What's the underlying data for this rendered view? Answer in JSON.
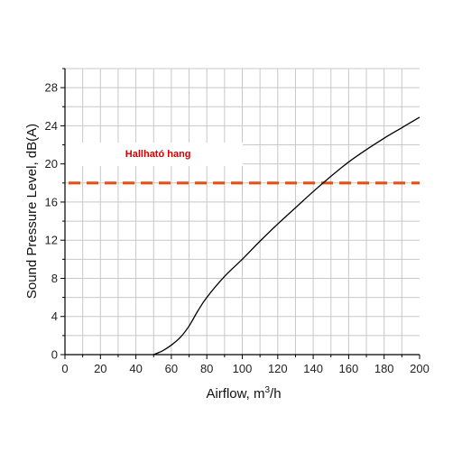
{
  "chart_data": {
    "type": "line",
    "xlabel": "Airflow, m",
    "xlabel_sup": "3",
    "xlabel_suffix": "/h",
    "ylabel": "Sound Pressure Level, dB(A)",
    "xlim": [
      0,
      200
    ],
    "ylim": [
      0,
      30
    ],
    "x_ticks": [
      0,
      20,
      40,
      60,
      80,
      100,
      120,
      140,
      160,
      180,
      200
    ],
    "y_ticks": [
      0,
      4,
      8,
      12,
      16,
      20,
      24,
      28
    ],
    "grid": true,
    "series": [
      {
        "color": "#000000",
        "x": [
          50,
          55,
          60,
          65,
          70,
          75,
          80,
          90,
          100,
          110,
          120,
          130,
          140,
          150,
          160,
          170,
          180,
          190,
          200
        ],
        "y": [
          0,
          0.4,
          1.0,
          1.8,
          3.0,
          4.6,
          6.0,
          8.2,
          10.0,
          11.9,
          13.7,
          15.4,
          17.1,
          18.7,
          20.2,
          21.5,
          22.7,
          23.8,
          24.9
        ]
      }
    ],
    "reference_line": {
      "y": 18,
      "color": "#e0511b",
      "style": "dashed"
    },
    "annotation": {
      "text": "Hallható hang",
      "color": "#d40000"
    }
  }
}
